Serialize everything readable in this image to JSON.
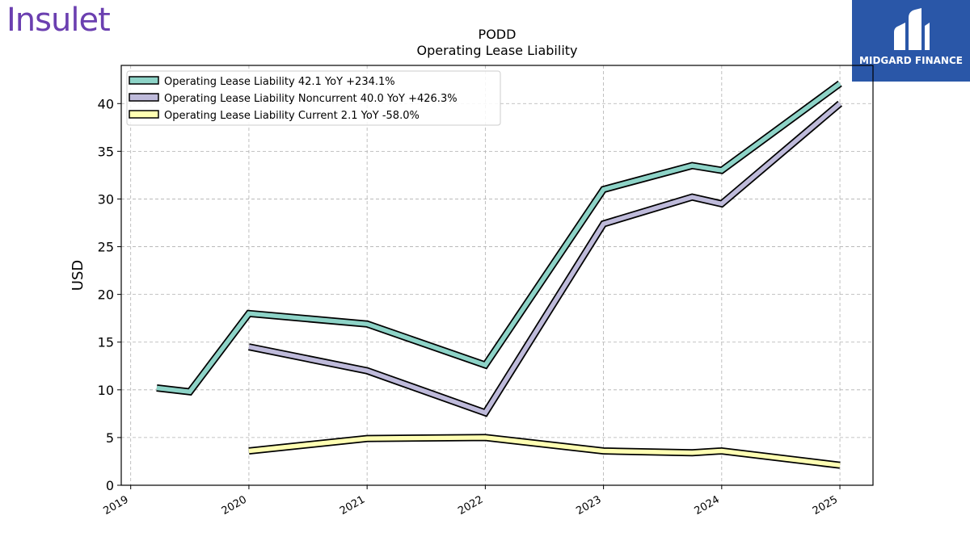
{
  "company_logo_text": "Insulet",
  "brand": {
    "name": "MIDGARD FINANCE"
  },
  "chart_data": {
    "type": "line",
    "title": "PODD",
    "subtitle": "Operating Lease Liability",
    "ylabel": "USD",
    "xlabel": "",
    "ylim": [
      0,
      44
    ],
    "xlim": [
      2018.92,
      2025.28
    ],
    "y_ticks": [
      0,
      5,
      10,
      15,
      20,
      25,
      30,
      35,
      40
    ],
    "x_ticks": [
      2019,
      2020,
      2021,
      2022,
      2023,
      2024,
      2025
    ],
    "x_tick_labels": [
      "2019",
      "2020",
      "2021",
      "2022",
      "2023",
      "2024",
      "2025"
    ],
    "grid": true,
    "legend_position": "top-left",
    "series": [
      {
        "name": "Operating Lease Liability  42.1 YoY +234.1%",
        "color": "#8dd3c7",
        "points": [
          [
            2019.22,
            10.2
          ],
          [
            2019.5,
            9.8
          ],
          [
            2020.0,
            18.0
          ],
          [
            2021.0,
            16.9
          ],
          [
            2022.0,
            12.6
          ],
          [
            2023.0,
            31.0
          ],
          [
            2023.75,
            33.5
          ],
          [
            2024.0,
            33.0
          ],
          [
            2025.0,
            42.1
          ]
        ]
      },
      {
        "name": "Operating Lease Liability Noncurrent  40.0 YoY +426.3%",
        "color": "#bebada",
        "points": [
          [
            2020.0,
            14.5
          ],
          [
            2021.0,
            12.0
          ],
          [
            2022.0,
            7.6
          ],
          [
            2023.0,
            27.4
          ],
          [
            2023.75,
            30.2
          ],
          [
            2024.0,
            29.5
          ],
          [
            2025.0,
            40.0
          ]
        ]
      },
      {
        "name": "Operating Lease Liability Current  2.1 YoY -58.0%",
        "color": "#ffffb3",
        "points": [
          [
            2020.0,
            3.6
          ],
          [
            2021.0,
            4.9
          ],
          [
            2022.0,
            5.0
          ],
          [
            2023.0,
            3.6
          ],
          [
            2023.75,
            3.4
          ],
          [
            2024.0,
            3.6
          ],
          [
            2025.0,
            2.1
          ]
        ]
      }
    ]
  }
}
